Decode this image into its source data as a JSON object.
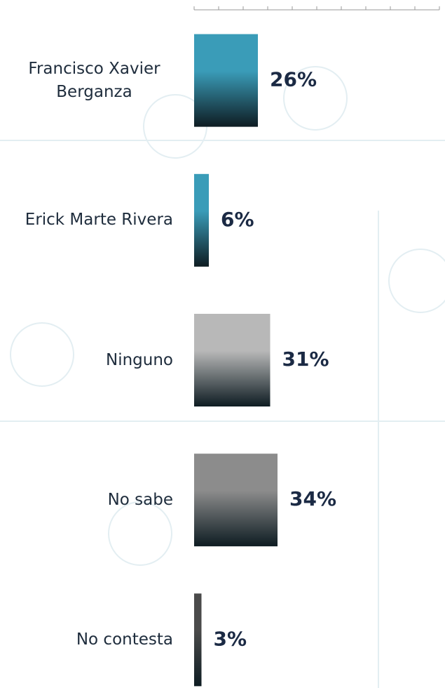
{
  "chart_data": {
    "type": "bar",
    "orientation": "horizontal",
    "categories": [
      "Francisco Xavier Berganza",
      "Erick Marte Rivera",
      "Ninguno",
      "No sabe",
      "No contesta"
    ],
    "values": [
      26,
      6,
      31,
      34,
      3
    ],
    "value_labels": [
      "26%",
      "6%",
      "31%",
      "34%",
      "3%"
    ],
    "colors": [
      "#3a9cb8",
      "#3a9cb8",
      "#b8b8b8",
      "#8c8c8c",
      "#4a4a4a"
    ],
    "xlim": [
      0,
      100
    ],
    "xticks": [
      0,
      10,
      20,
      30,
      40,
      50,
      60,
      70,
      80,
      90,
      100
    ]
  }
}
